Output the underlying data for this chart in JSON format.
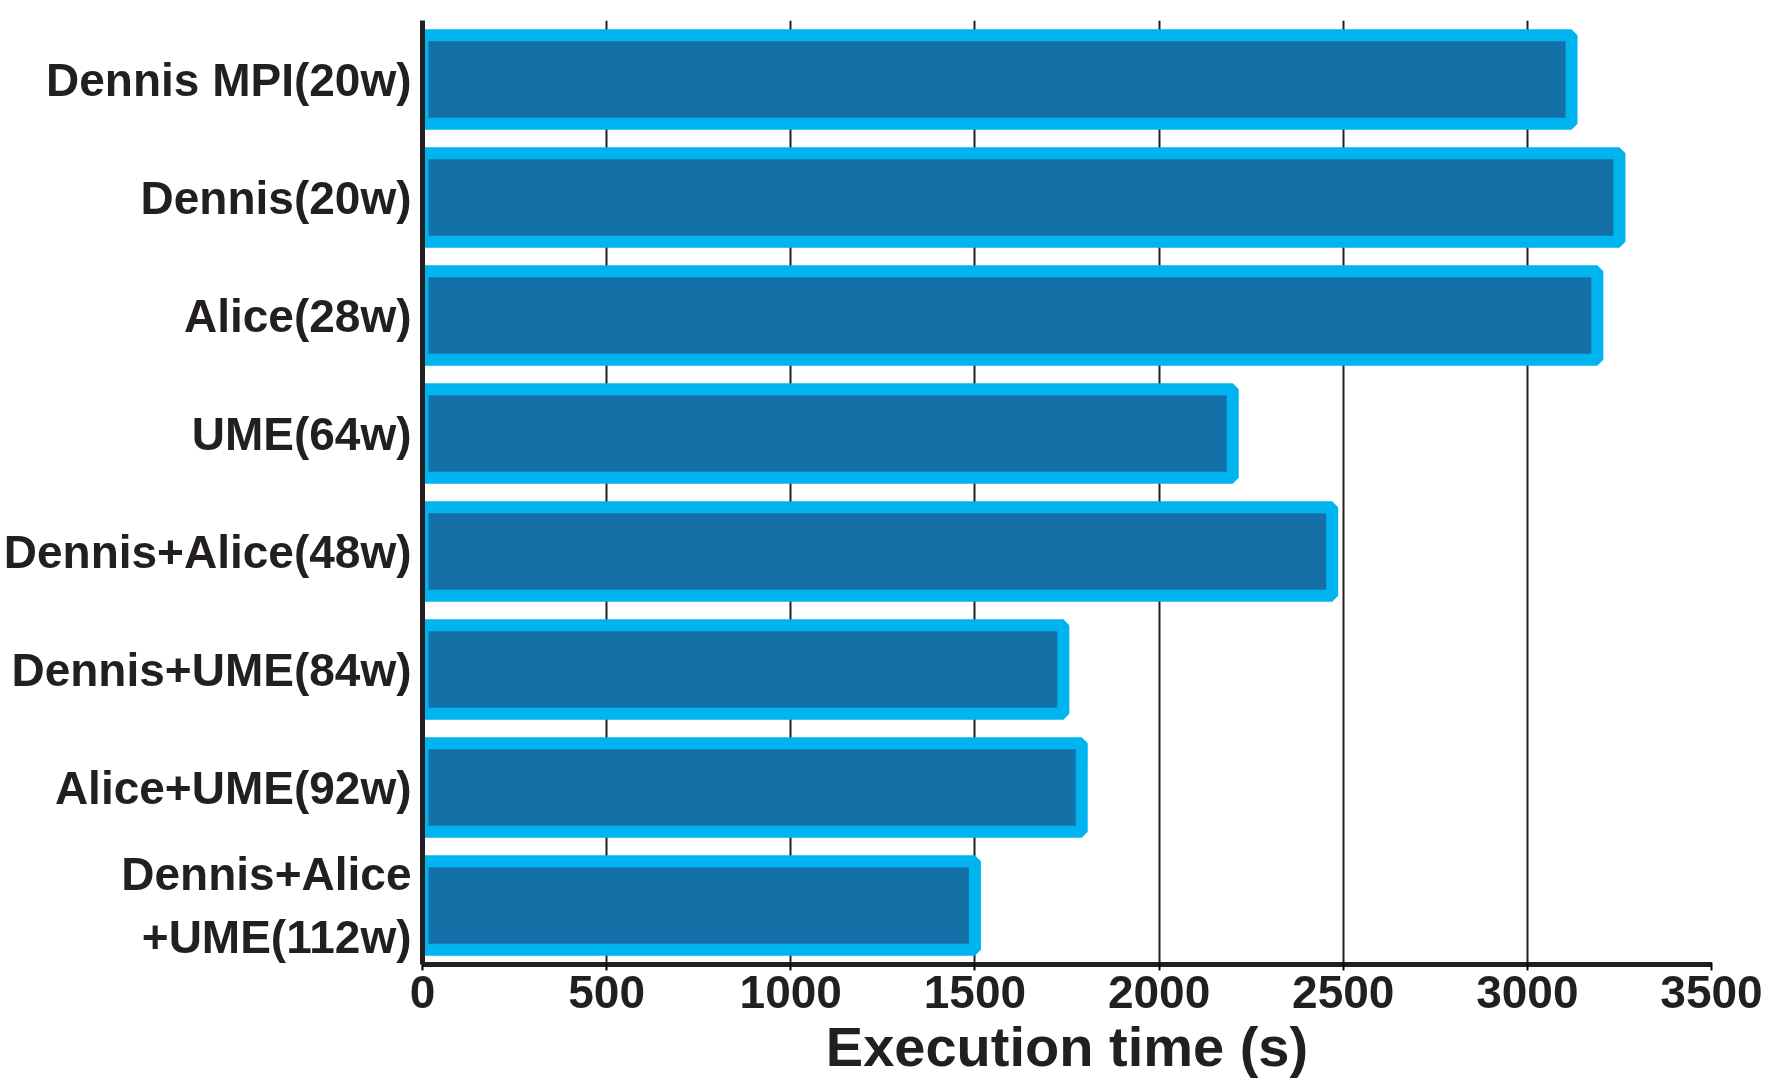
{
  "chart_data": {
    "type": "bar",
    "orientation": "horizontal",
    "xlabel": "Execution time (s)",
    "categories": [
      "Dennis MPI(20w)",
      "Dennis(20w)",
      "Alice(28w)",
      "UME(64w)",
      "Dennis+Alice(48w)",
      "Dennis+UME(84w)",
      "Alice+UME(92w)",
      "Dennis+Alice+UME(112w)"
    ],
    "values": [
      3120,
      3250,
      3190,
      2200,
      2470,
      1740,
      1790,
      1500
    ],
    "color": "#1670a8",
    "xlim": [
      0,
      3500
    ],
    "xticks": [
      0,
      500,
      1000,
      1500,
      2000,
      2500,
      3000,
      3500
    ],
    "grid": "x"
  }
}
